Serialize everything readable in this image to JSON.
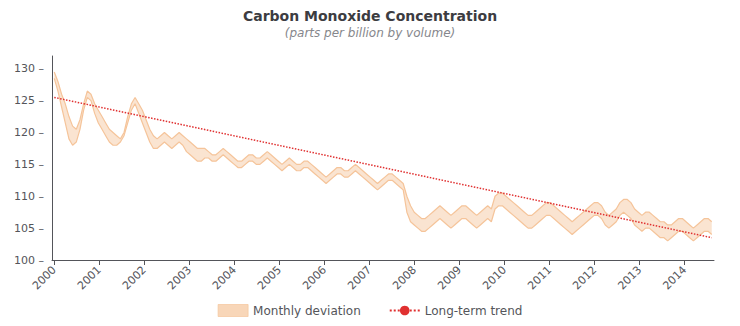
{
  "chart_data": {
    "type": "line",
    "title": "Carbon Monoxide Concentration",
    "subtitle": "(parts per billion by volume)",
    "x": [
      2000,
      2000.0816,
      2000.1631,
      2000.2447,
      2000.3263,
      2000.4078,
      2000.4894,
      2000.5709,
      2000.6525,
      2000.7341,
      2000.8156,
      2000.8972,
      2000.9788,
      2001.0603,
      2001.1419,
      2001.2235,
      2001.305,
      2001.3866,
      2001.4682,
      2001.5497,
      2001.6313,
      2001.7128,
      2001.7944,
      2001.876,
      2001.9575,
      2002.0391,
      2002.1207,
      2002.2022,
      2002.2838,
      2002.3654,
      2002.4469,
      2002.5285,
      2002.6101,
      2002.6916,
      2002.7732,
      2002.8547,
      2002.9363,
      2003.0179,
      2003.0994,
      2003.181,
      2003.2626,
      2003.3441,
      2003.4257,
      2003.5073,
      2003.5888,
      2003.6704,
      2003.752,
      2003.8335,
      2003.9151,
      2003.9966,
      2004.0782,
      2004.1598,
      2004.2413,
      2004.3229,
      2004.4045,
      2004.486,
      2004.5676,
      2004.6492,
      2004.7307,
      2004.8123,
      2004.8939,
      2004.9754,
      2005.057,
      2005.1385,
      2005.2201,
      2005.3017,
      2005.3832,
      2005.4648,
      2005.5464,
      2005.6279,
      2005.7095,
      2005.7911,
      2005.8726,
      2005.9542,
      2006.0358,
      2006.1173,
      2006.1989,
      2006.2804,
      2006.362,
      2006.4436,
      2006.5251,
      2006.6067,
      2006.6883,
      2006.7698,
      2006.8514,
      2006.933,
      2007.0145,
      2007.0961,
      2007.1777,
      2007.2592,
      2007.3408,
      2007.4223,
      2007.5039,
      2007.5855,
      2007.667,
      2007.7486,
      2007.8302,
      2007.9117,
      2007.9933,
      2008.0749,
      2008.1564,
      2008.238,
      2008.3196,
      2008.4011,
      2008.4827,
      2008.5642,
      2008.6458,
      2008.7274,
      2008.8089,
      2008.8905,
      2008.9721,
      2009.0536,
      2009.1352,
      2009.2168,
      2009.2983,
      2009.3799,
      2009.4615,
      2009.543,
      2009.6246,
      2009.7061,
      2009.7877,
      2009.8693,
      2009.9508,
      2010.0324,
      2010.114,
      2010.1955,
      2010.2771,
      2010.3587,
      2010.4402,
      2010.5218,
      2010.6034,
      2010.6849,
      2010.7665,
      2010.848,
      2010.9296,
      2011.0112,
      2011.0927,
      2011.1743,
      2011.2559,
      2011.3374,
      2011.419,
      2011.5006,
      2011.5821,
      2011.6637,
      2011.7453,
      2011.8268,
      2011.9084,
      2011.9899,
      2012.0715,
      2012.1531,
      2012.2346,
      2012.3162,
      2012.3978,
      2012.4793,
      2012.5609,
      2012.6425,
      2012.724,
      2012.8056,
      2012.8872,
      2012.9687,
      2013.0503,
      2013.1318,
      2013.2134,
      2013.295,
      2013.3765,
      2013.4581,
      2013.5397,
      2013.6212,
      2013.7028,
      2013.7844,
      2013.8659,
      2013.9475,
      2014.0291,
      2014.1106,
      2014.1922,
      2014.2737,
      2014.3553,
      2014.4369,
      2014.5184,
      2014.6
    ],
    "series": [
      {
        "name": "Monthly deviation",
        "type": "band",
        "color": "#f5c49a",
        "upper": [
          129.5,
          128.0,
          126.0,
          124.5,
          122.5,
          121.0,
          120.5,
          122.0,
          124.5,
          126.5,
          126.0,
          124.5,
          123.5,
          122.5,
          121.5,
          120.5,
          120.0,
          119.5,
          119.0,
          120.0,
          122.5,
          124.5,
          125.5,
          124.5,
          123.5,
          122.0,
          120.5,
          119.5,
          119.0,
          119.5,
          120.0,
          119.5,
          119.0,
          119.5,
          120.0,
          119.5,
          119.0,
          118.5,
          118.0,
          117.5,
          117.5,
          117.5,
          117.0,
          116.5,
          116.5,
          117.0,
          117.5,
          117.0,
          116.5,
          116.0,
          115.5,
          115.5,
          116.0,
          116.5,
          116.5,
          116.0,
          116.0,
          116.5,
          117.0,
          116.5,
          116.0,
          115.5,
          115.0,
          115.5,
          116.0,
          115.5,
          115.0,
          115.0,
          115.5,
          115.5,
          115.0,
          114.5,
          114.0,
          113.5,
          113.0,
          113.5,
          114.0,
          114.5,
          114.5,
          114.0,
          114.0,
          114.5,
          115.0,
          114.5,
          114.0,
          113.5,
          113.0,
          112.5,
          112.0,
          112.5,
          113.0,
          113.5,
          113.5,
          113.0,
          112.5,
          112.0,
          110.0,
          108.5,
          107.5,
          107.0,
          106.5,
          106.5,
          107.0,
          107.5,
          108.0,
          108.5,
          108.0,
          107.5,
          107.0,
          107.5,
          108.0,
          108.5,
          108.5,
          108.0,
          107.5,
          107.0,
          107.5,
          108.0,
          108.5,
          108.0,
          110.0,
          110.5,
          110.5,
          110.0,
          109.5,
          109.0,
          108.5,
          108.0,
          107.5,
          107.0,
          107.0,
          107.5,
          108.0,
          108.5,
          109.0,
          109.0,
          108.5,
          108.0,
          107.5,
          107.0,
          106.5,
          106.0,
          106.5,
          107.0,
          107.5,
          108.0,
          108.5,
          109.0,
          109.0,
          108.5,
          107.5,
          107.0,
          107.5,
          108.0,
          109.0,
          109.5,
          109.5,
          109.0,
          108.0,
          107.5,
          107.0,
          107.5,
          107.5,
          107.0,
          106.5,
          106.0,
          106.0,
          105.5,
          105.5,
          106.0,
          106.5,
          106.5,
          106.0,
          105.5,
          105.0,
          105.5,
          106.0,
          106.5,
          106.5,
          106.0
        ],
        "lower": [
          128.5,
          126.5,
          124.0,
          121.5,
          119.0,
          118.0,
          118.5,
          120.5,
          123.5,
          125.5,
          125.0,
          123.0,
          121.5,
          120.5,
          119.5,
          118.5,
          118.0,
          118.0,
          118.5,
          119.5,
          121.5,
          123.5,
          124.5,
          123.0,
          121.5,
          120.0,
          118.5,
          117.5,
          117.5,
          118.0,
          118.5,
          118.0,
          117.5,
          118.0,
          118.5,
          118.0,
          117.0,
          116.5,
          116.0,
          115.5,
          115.5,
          116.0,
          116.0,
          115.5,
          115.5,
          116.0,
          116.5,
          116.0,
          115.5,
          115.0,
          114.5,
          114.5,
          115.0,
          115.5,
          115.5,
          115.0,
          115.0,
          115.5,
          116.0,
          115.5,
          115.0,
          114.5,
          114.0,
          114.5,
          115.0,
          114.5,
          114.0,
          114.0,
          114.5,
          114.5,
          114.0,
          113.5,
          113.0,
          112.5,
          112.0,
          112.5,
          113.0,
          113.5,
          113.5,
          113.0,
          113.0,
          113.5,
          114.0,
          113.5,
          113.0,
          112.5,
          112.0,
          111.5,
          111.0,
          111.5,
          112.0,
          112.5,
          112.5,
          112.0,
          111.5,
          111.0,
          107.5,
          106.0,
          105.5,
          105.0,
          104.5,
          104.5,
          105.0,
          105.5,
          106.0,
          106.5,
          106.0,
          105.5,
          105.0,
          105.5,
          106.0,
          106.5,
          106.5,
          106.0,
          105.5,
          105.0,
          105.5,
          106.0,
          106.5,
          106.0,
          108.0,
          108.5,
          108.5,
          108.0,
          107.5,
          107.0,
          106.5,
          106.0,
          105.5,
          105.0,
          105.0,
          105.5,
          106.0,
          106.5,
          107.0,
          107.0,
          106.5,
          106.0,
          105.5,
          105.0,
          104.5,
          104.0,
          104.5,
          105.0,
          105.5,
          106.0,
          106.5,
          107.0,
          107.0,
          106.5,
          105.5,
          105.0,
          105.5,
          106.0,
          107.0,
          107.5,
          107.0,
          106.5,
          105.5,
          105.0,
          104.5,
          105.0,
          105.0,
          104.5,
          104.0,
          103.5,
          103.5,
          103.0,
          103.5,
          104.0,
          104.5,
          104.5,
          104.0,
          103.5,
          103.0,
          103.5,
          104.0,
          104.5,
          104.5,
          104.0
        ]
      },
      {
        "name": "Long-term trend",
        "type": "line",
        "color": "#e03030",
        "line_style": "dotted",
        "x": [
          2000.0,
          2014.6
        ],
        "values": [
          125.5,
          103.5
        ]
      }
    ],
    "xlim": [
      1999.95,
      2014.65
    ],
    "xticks": [
      2000,
      2001,
      2002,
      2003,
      2004,
      2005,
      2006,
      2007,
      2008,
      2009,
      2010,
      2011,
      2012,
      2013,
      2014
    ],
    "ylim": [
      100,
      132
    ],
    "yticks": [
      {
        "value": 100,
        "label": "100 –"
      },
      {
        "value": 105,
        "label": "105 –"
      },
      {
        "value": 110,
        "label": "110 –"
      },
      {
        "value": 115,
        "label": "115 –"
      },
      {
        "value": 120,
        "label": "120 –"
      },
      {
        "value": 125,
        "label": "125 –"
      },
      {
        "value": 130,
        "label": "130 –"
      }
    ],
    "grid": false,
    "legend": "bottom"
  }
}
